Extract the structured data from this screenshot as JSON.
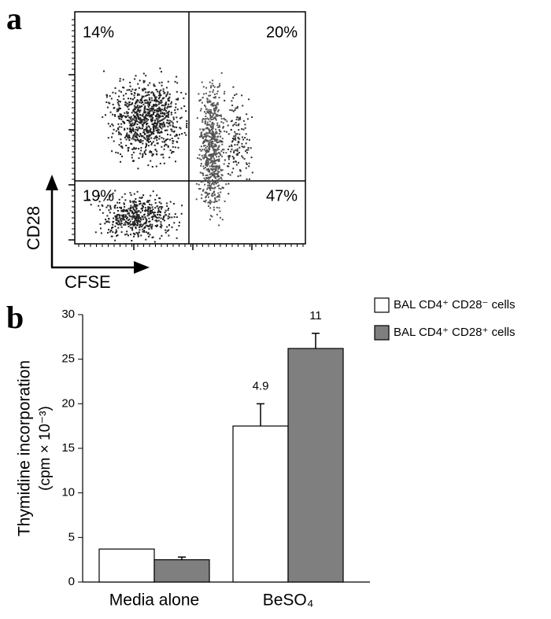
{
  "chart_data": [
    {
      "type": "quadrant",
      "panel": "a",
      "xlabel": "CFSE",
      "ylabel": "CD28",
      "values": [
        14,
        20,
        19,
        47
      ],
      "value_labels": [
        "14%",
        "20%",
        "19%",
        "47%"
      ]
    },
    {
      "type": "bar",
      "panel": "b",
      "ylabel": [
        "Thymidine incorporation",
        "(cpm × 10⁻³)"
      ],
      "categories": [
        "Media alone",
        "BeSO₄"
      ],
      "series": [
        {
          "name": "BAL CD4⁺ CD28⁻ cells",
          "color": "#ffffff",
          "values": [
            3.7,
            17.5
          ],
          "errors": [
            null,
            2.5
          ]
        },
        {
          "name": "BAL CD4⁺ CD28⁺ cells",
          "color": "#7f7f7f",
          "values": [
            2.5,
            26.2
          ],
          "errors": [
            0.3,
            1.7
          ]
        }
      ],
      "annotations": [
        "4.9",
        "11"
      ],
      "ylim": [
        0,
        30
      ],
      "yticks": [
        0,
        5,
        10,
        15,
        20,
        25,
        30
      ]
    }
  ]
}
